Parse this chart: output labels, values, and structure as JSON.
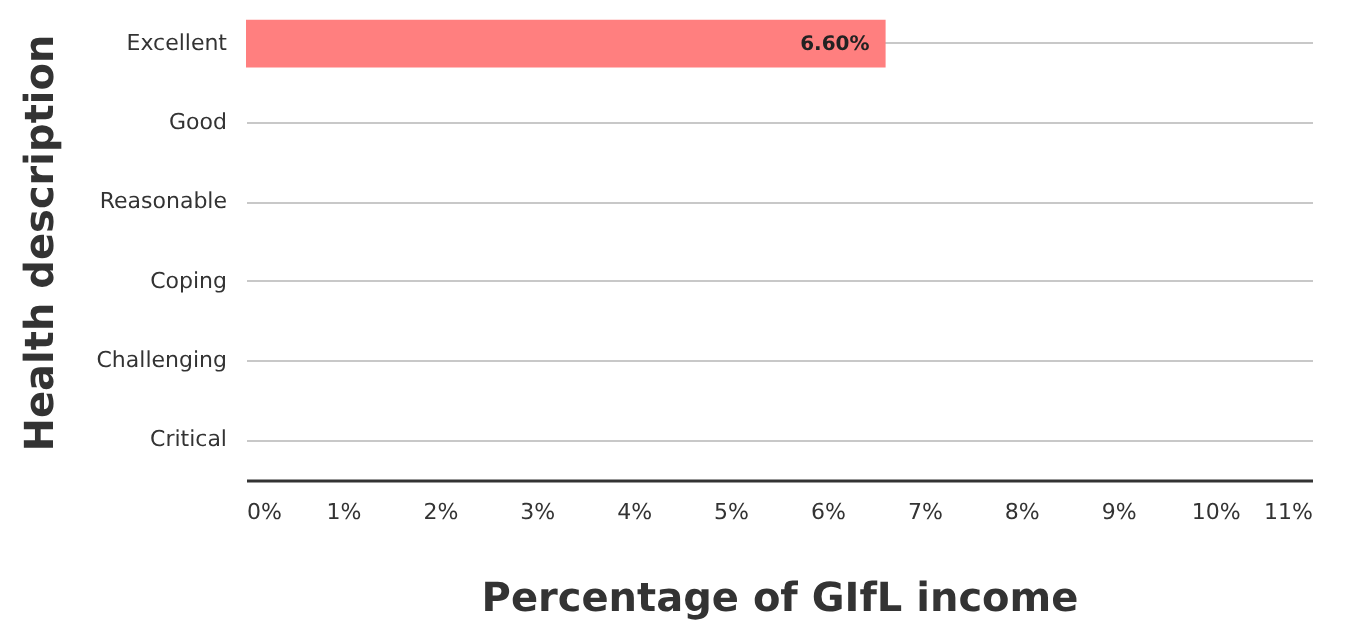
{
  "chart_data": {
    "type": "bar",
    "orientation": "horizontal",
    "xlabel": "Percentage of GIfL income",
    "ylabel": "Health description",
    "categories": [
      "Excellent",
      "Good",
      "Reasonable",
      "Coping",
      "Challenging",
      "Critical"
    ],
    "values": [
      6.6,
      null,
      null,
      null,
      null,
      null
    ],
    "value_labels": [
      "6.60%",
      null,
      null,
      null,
      null,
      null
    ],
    "color": "#ff7f7f",
    "xlim": [
      0,
      11
    ],
    "xticks": [
      {
        "value": 0,
        "label": "0%"
      },
      {
        "value": 1,
        "label": "1%"
      },
      {
        "value": 2,
        "label": "2%"
      },
      {
        "value": 3,
        "label": "3%"
      },
      {
        "value": 4,
        "label": "4%"
      },
      {
        "value": 5,
        "label": "5%"
      },
      {
        "value": 6,
        "label": "6%"
      },
      {
        "value": 7,
        "label": "7%"
      },
      {
        "value": 8,
        "label": "8%"
      },
      {
        "value": 9,
        "label": "9%"
      },
      {
        "value": 10,
        "label": "10%"
      },
      {
        "value": 11,
        "label": "11%"
      }
    ],
    "grid": "y"
  }
}
